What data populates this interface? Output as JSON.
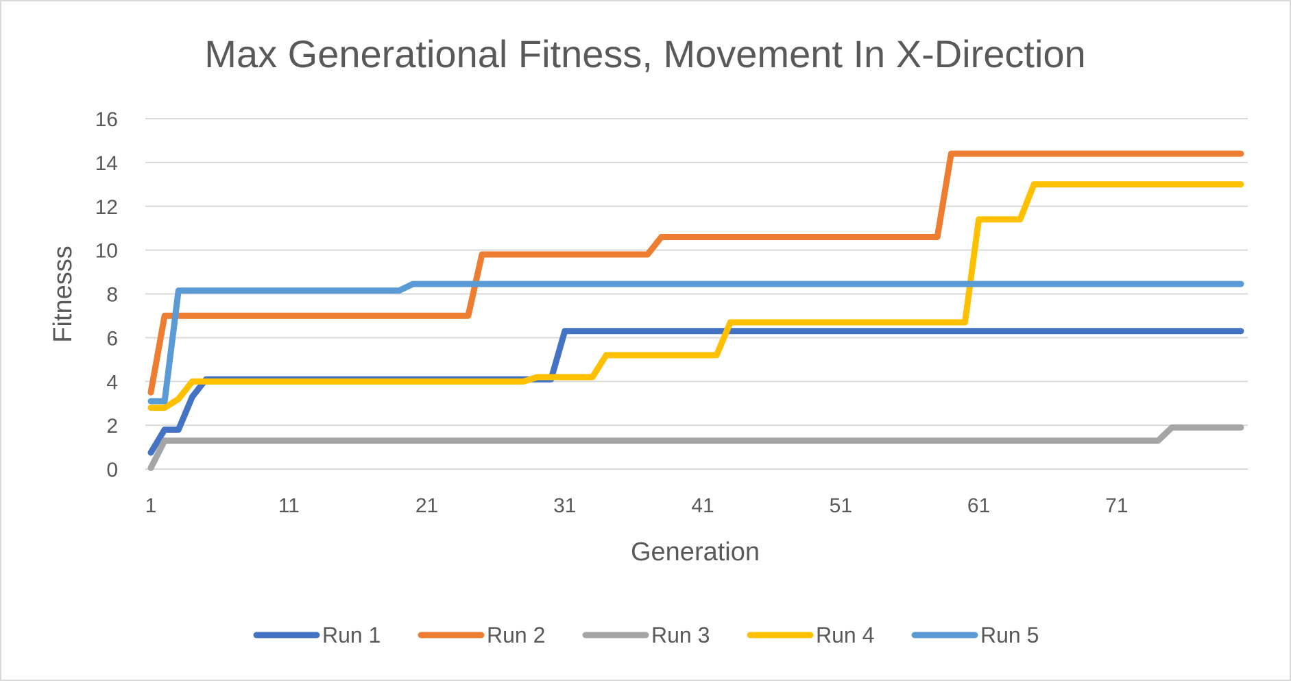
{
  "chart_data": {
    "type": "line",
    "title": "Max Generational Fitness, Movement In X-Direction",
    "xlabel": "Generation",
    "ylabel": "Fitnesss",
    "x_range": [
      1,
      80
    ],
    "x_ticks": [
      1,
      11,
      21,
      31,
      41,
      51,
      61,
      71
    ],
    "ylim": [
      0,
      16
    ],
    "y_ticks": [
      0,
      2,
      4,
      6,
      8,
      10,
      12,
      14,
      16
    ],
    "grid": "horizontal",
    "legend_position": "bottom",
    "series": [
      {
        "name": "Run 1",
        "color": "#4472C4",
        "points": [
          [
            1,
            0.75
          ],
          [
            2,
            1.8
          ],
          [
            3,
            1.8
          ],
          [
            4,
            3.3
          ],
          [
            5,
            4.1
          ],
          [
            30,
            4.1
          ],
          [
            31,
            6.3
          ],
          [
            80,
            6.3
          ]
        ]
      },
      {
        "name": "Run 2",
        "color": "#ED7D31",
        "points": [
          [
            1,
            3.5
          ],
          [
            2,
            7.0
          ],
          [
            24,
            7.0
          ],
          [
            25,
            9.8
          ],
          [
            37,
            9.8
          ],
          [
            38,
            10.6
          ],
          [
            58,
            10.6
          ],
          [
            59,
            14.4
          ],
          [
            80,
            14.4
          ]
        ]
      },
      {
        "name": "Run 3",
        "color": "#A5A5A5",
        "points": [
          [
            1,
            0.05
          ],
          [
            2,
            1.3
          ],
          [
            74,
            1.3
          ],
          [
            75,
            1.9
          ],
          [
            80,
            1.9
          ]
        ]
      },
      {
        "name": "Run 4",
        "color": "#FFC000",
        "points": [
          [
            1,
            2.8
          ],
          [
            2,
            2.8
          ],
          [
            3,
            3.2
          ],
          [
            4,
            4.0
          ],
          [
            28,
            4.0
          ],
          [
            29,
            4.2
          ],
          [
            33,
            4.2
          ],
          [
            34,
            5.2
          ],
          [
            42,
            5.2
          ],
          [
            43,
            6.7
          ],
          [
            60,
            6.7
          ],
          [
            61,
            11.4
          ],
          [
            64,
            11.4
          ],
          [
            65,
            13.0
          ],
          [
            80,
            13.0
          ]
        ]
      },
      {
        "name": "Run 5",
        "color": "#5B9BD5",
        "points": [
          [
            1,
            3.1
          ],
          [
            2,
            3.1
          ],
          [
            3,
            8.15
          ],
          [
            19,
            8.15
          ],
          [
            20,
            8.45
          ],
          [
            80,
            8.45
          ]
        ]
      }
    ]
  }
}
